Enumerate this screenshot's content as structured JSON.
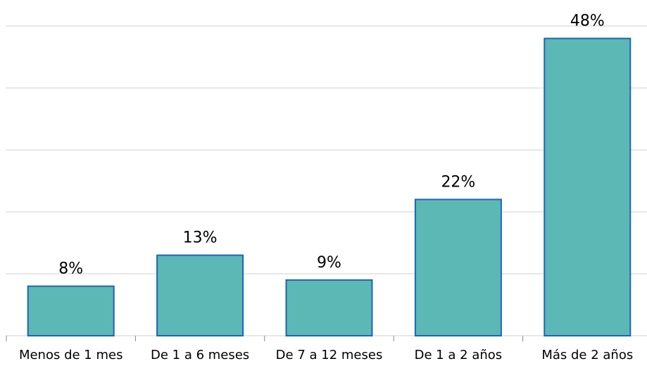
{
  "chart_data": {
    "type": "bar",
    "categories": [
      "Menos de 1 mes",
      "De 1 a 6 meses",
      "De 7 a 12 meses",
      "De 1 a 2 años",
      "Más de 2 años"
    ],
    "values": [
      8,
      13,
      9,
      22,
      48
    ],
    "value_labels": [
      "8%",
      "13%",
      "9%",
      "22%",
      "48%"
    ],
    "color": "#5cb8b5",
    "edge_color": "#1f64b8",
    "ylim": [
      0,
      50
    ],
    "yticks": [
      0,
      10,
      20,
      30,
      40,
      50
    ],
    "grid": true
  }
}
